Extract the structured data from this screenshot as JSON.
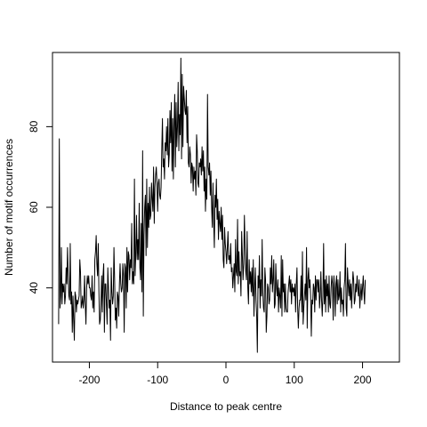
{
  "chart_data": {
    "type": "line",
    "title": "",
    "xlabel": "Distance to peak centre",
    "ylabel": "Number of motif occurrences",
    "xlim": [
      -254,
      254
    ],
    "ylim": [
      21.6,
      98.4
    ],
    "xticks": [
      -200,
      -100,
      0,
      100,
      200
    ],
    "yticks": [
      40,
      60,
      80
    ],
    "grid": false,
    "legend": "none",
    "series": [
      {
        "x_start": -245,
        "x_step": 1,
        "values": [
          31,
          77,
          35,
          38,
          50,
          36,
          41,
          39,
          41,
          36,
          38,
          45,
          41,
          50,
          43,
          38,
          37,
          51,
          36,
          39,
          29,
          38,
          32,
          27,
          39,
          38,
          34,
          37,
          36,
          37,
          38,
          47,
          44,
          35,
          36,
          38,
          35,
          37,
          43,
          36,
          31,
          40,
          43,
          41,
          43,
          40,
          40,
          38,
          37,
          43,
          35,
          39,
          34,
          47,
          49,
          53,
          46,
          43,
          51,
          39,
          31,
          32,
          36,
          43,
          34,
          43,
          46,
          29,
          41,
          41,
          36,
          31,
          45,
          40,
          35,
          37,
          27,
          45,
          39,
          36,
          38,
          50,
          42,
          32,
          35,
          30,
          39,
          38,
          33,
          41,
          46,
          41,
          39,
          40,
          46,
          43,
          29,
          46,
          45,
          35,
          50,
          39,
          49,
          48,
          42,
          47,
          45,
          56,
          41,
          44,
          41,
          67,
          43,
          48,
          58,
          47,
          52,
          47,
          61,
          45,
          42,
          56,
          39,
          74,
          33,
          53,
          60,
          63,
          48,
          67,
          50,
          61,
          55,
          65,
          57,
          58,
          66,
          62,
          59,
          70,
          56,
          65,
          68,
          70,
          66,
          59,
          66,
          67,
          63,
          62,
          65,
          74,
          82,
          70,
          72,
          67,
          76,
          74,
          80,
          73,
          82,
          70,
          73,
          84,
          76,
          86,
          69,
          82,
          67,
          80,
          88,
          70,
          86,
          75,
          80,
          91,
          74,
          83,
          78,
          97,
          72,
          93,
          75,
          90,
          87,
          84,
          83,
          89,
          76,
          85,
          71,
          70,
          75,
          73,
          66,
          71,
          70,
          64,
          70,
          67,
          69,
          63,
          78,
          74,
          66,
          65,
          71,
          70,
          72,
          68,
          75,
          69,
          74,
          64,
          70,
          59,
          67,
          62,
          88,
          70,
          68,
          71,
          63,
          69,
          60,
          55,
          66,
          57,
          50,
          63,
          60,
          67,
          57,
          62,
          52,
          59,
          56,
          54,
          60,
          52,
          58,
          47,
          45,
          55,
          51,
          49,
          46,
          50,
          54,
          47,
          48,
          46,
          51,
          44,
          45,
          40,
          43,
          46,
          39,
          52,
          44,
          43,
          57,
          41,
          49,
          43,
          44,
          38,
          54,
          48,
          42,
          46,
          58,
          50,
          44,
          42,
          54,
          40,
          36,
          47,
          41,
          44,
          39,
          45,
          38,
          47,
          33,
          40,
          45,
          37,
          33,
          24,
          43,
          40,
          48,
          35,
          42,
          38,
          52,
          39,
          35,
          34,
          45,
          42,
          29,
          33,
          41,
          40,
          36,
          37,
          45,
          41,
          48,
          39,
          42,
          47,
          35,
          36,
          46,
          40,
          38,
          42,
          34,
          40,
          38,
          35,
          48,
          33,
          47,
          39,
          41,
          34,
          41,
          35,
          34,
          34,
          39,
          41,
          43,
          39,
          42,
          36,
          41,
          39,
          40,
          38,
          41,
          34,
          41,
          45,
          35,
          30,
          35,
          37,
          37,
          43,
          34,
          49,
          31,
          35,
          38,
          41,
          37,
          50,
          30,
          42,
          45,
          40,
          42,
          38,
          28,
          37,
          36,
          41,
          40,
          34,
          43,
          37,
          42,
          42,
          39,
          42,
          35,
          38,
          44,
          37,
          33,
          38,
          51,
          36,
          42,
          34,
          43,
          38,
          41,
          34,
          43,
          36,
          35,
          40,
          43,
          41,
          32,
          43,
          40,
          33,
          41,
          43,
          36,
          42,
          37,
          38,
          44,
          34,
          40,
          36,
          37,
          33,
          40,
          42,
          51,
          35,
          33,
          45,
          41,
          38,
          42,
          37,
          41,
          35,
          40,
          44,
          42,
          36,
          37,
          41,
          39,
          43,
          40,
          38,
          42,
          35,
          38,
          41,
          37,
          40,
          43,
          39,
          36,
          42
        ]
      }
    ]
  }
}
